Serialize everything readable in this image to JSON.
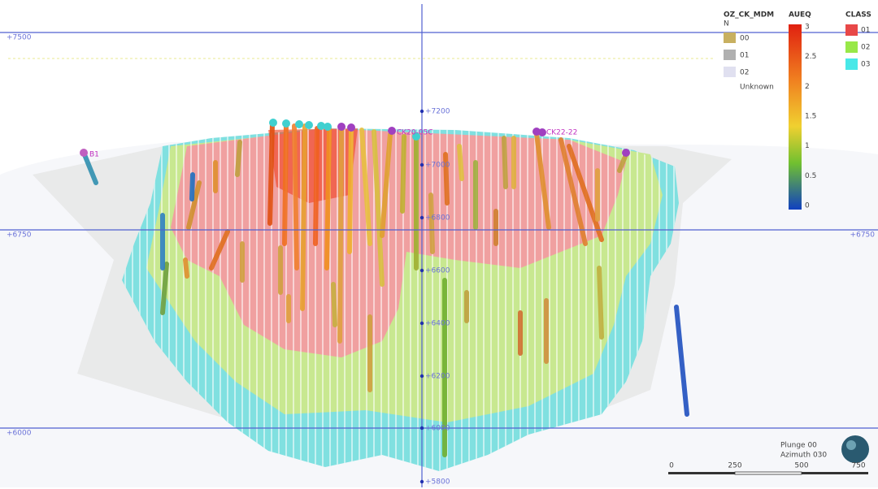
{
  "section_labels": {
    "left": [
      "+7500",
      "+6750",
      "+6000"
    ],
    "right": [
      "+6750"
    ]
  },
  "elevation_labels": [
    "+7200",
    "+7000",
    "+6800",
    "+6600",
    "+6400",
    "+6200",
    "+6000",
    "+5800"
  ],
  "drillhole_labels": [
    "B1",
    "CK20-05C",
    "CK22-22"
  ],
  "legends": {
    "oz": {
      "title": "OZ_CK_MDM",
      "subtitle": "N",
      "items": [
        "00",
        "01",
        "02",
        "Unknown"
      ]
    },
    "aueq": {
      "title": "AUEQ",
      "ticks": [
        "3",
        "2.5",
        "2",
        "1.5",
        "1",
        "0.5",
        "0"
      ]
    },
    "class": {
      "title": "CLASS",
      "items": [
        "01",
        "02",
        "03"
      ]
    }
  },
  "view": {
    "plunge": "Plunge 00",
    "azimuth": "Azimuth 030"
  },
  "scale_bar": [
    "0",
    "250",
    "500",
    "750"
  ]
}
